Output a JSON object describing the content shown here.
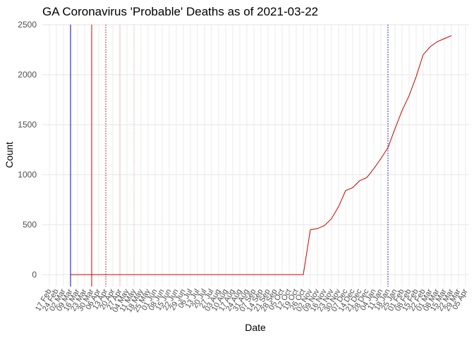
{
  "chart_data": {
    "type": "line",
    "title": "GA Coronavirus 'Probable' Deaths as of 2021-03-22",
    "x_label": "Date",
    "y_label": "Count",
    "categories": [
      "17 Feb",
      "24 Feb",
      "02 Mar",
      "09 Mar",
      "16 Mar",
      "23 Mar",
      "30 Mar",
      "06 Apr",
      "13 Apr",
      "20 Apr",
      "27 Apr",
      "04 May",
      "11 May",
      "18 May",
      "25 May",
      "01 Jun",
      "08 Jun",
      "15 Jun",
      "22 Jun",
      "29 Jun",
      "06 Jul",
      "13 Jul",
      "20 Jul",
      "27 Jul",
      "03 Aug",
      "10 Aug",
      "17 Aug",
      "24 Aug",
      "31 Aug",
      "07 Sep",
      "14 Sep",
      "21 Sep",
      "28 Sep",
      "05 Oct",
      "12 Oct",
      "19 Oct",
      "26 Oct",
      "02 Nov",
      "09 Nov",
      "16 Nov",
      "23 Nov",
      "30 Nov",
      "07 Dec",
      "14 Dec",
      "21 Dec",
      "28 Dec",
      "04 Jan",
      "11 Jan",
      "18 Jan",
      "25 Jan",
      "01 Feb",
      "08 Feb",
      "15 Feb",
      "22 Feb",
      "01 Mar",
      "08 Mar",
      "15 Mar",
      "22 Mar",
      "29 Mar",
      "05 Apr"
    ],
    "series": [
      {
        "color": "#cc0000",
        "values": [
          null,
          null,
          null,
          0,
          0,
          0,
          0,
          0,
          0,
          0,
          0,
          0,
          0,
          0,
          0,
          0,
          0,
          0,
          0,
          0,
          0,
          0,
          0,
          0,
          0,
          0,
          0,
          0,
          0,
          0,
          0,
          0,
          0,
          0,
          0,
          0,
          0,
          450,
          460,
          490,
          560,
          680,
          840,
          870,
          940,
          970,
          1060,
          1160,
          1270,
          1460,
          1640,
          1790,
          1980,
          2200,
          2280,
          2330,
          2360,
          2390,
          null,
          null
        ]
      }
    ],
    "vlines": [
      {
        "x": "09 Mar",
        "color": "#0000cc",
        "dash": false
      },
      {
        "x": "30 Mar",
        "color": "#cc0000",
        "dash": false
      },
      {
        "x": "13 Apr",
        "color": "#cc0000",
        "dash": true
      },
      {
        "x": "27 Apr",
        "color": "#f4b6b6",
        "dash": false
      },
      {
        "x": "11 May",
        "color": "#f4b6b6",
        "dash": true
      },
      {
        "x": "18 Jan",
        "color": "#0000cc",
        "dash": true
      }
    ],
    "ylim": [
      -120,
      2500
    ],
    "yticks": [
      0,
      500,
      1000,
      1500,
      2000,
      2500
    ],
    "grid": true
  }
}
